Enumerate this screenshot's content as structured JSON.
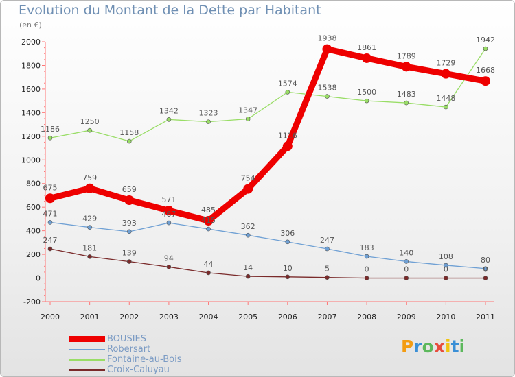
{
  "chart_data": {
    "type": "line",
    "title": "Evolution du Montant de la Dette par Habitant",
    "subtitle": "(en €)",
    "xlabel": "",
    "ylabel": "",
    "ylim": [
      -200,
      2000
    ],
    "yticks": [
      -200,
      0,
      200,
      400,
      600,
      800,
      1000,
      1200,
      1400,
      1600,
      1800,
      2000
    ],
    "x": [
      "2000",
      "2001",
      "2002",
      "2003",
      "2004",
      "2005",
      "2006",
      "2007",
      "2008",
      "2009",
      "2010",
      "2011"
    ],
    "grid": false,
    "legend_position": "bottom-left",
    "series": [
      {
        "name": "Fontaine-au-Bois",
        "color": "#99dd66",
        "values": [
          1186,
          1250,
          1158,
          1342,
          1323,
          1347,
          1574,
          1538,
          1500,
          1483,
          1448,
          1942
        ]
      },
      {
        "name": "Robersart",
        "color": "#6fa0d4",
        "values": [
          471,
          429,
          393,
          467,
          415,
          362,
          306,
          247,
          183,
          140,
          108,
          80
        ]
      },
      {
        "name": "Croix-Caluyau",
        "color": "#7a2a2a",
        "values": [
          247,
          181,
          139,
          94,
          44,
          14,
          10,
          5,
          0,
          0,
          0,
          0
        ]
      },
      {
        "name": "BOUSIES",
        "color": "#ee0000",
        "values": [
          675,
          759,
          659,
          571,
          485,
          754,
          1116,
          1938,
          1861,
          1789,
          1729,
          1668
        ]
      }
    ],
    "data_labels": {
      "Fontaine-au-Bois": [
        "1186",
        "1250",
        "1158",
        "1342",
        "1323",
        "1347",
        "1574",
        "1538",
        "1500",
        "1483",
        "1448",
        "1942"
      ],
      "Robersart": [
        "471",
        "429",
        "393",
        "467",
        "415",
        "362",
        "306",
        "247",
        "183",
        "140",
        "108",
        "80"
      ],
      "Croix-Caluyau": [
        "247",
        "181",
        "139",
        "94",
        "44",
        "14",
        "10",
        "5",
        "0",
        "0",
        "0",
        "0"
      ],
      "BOUSIES": [
        "675",
        "759",
        "659",
        "571",
        "485",
        "754",
        "1116",
        "1938",
        "1861",
        "1789",
        "1729",
        "1668"
      ]
    }
  },
  "legend": [
    {
      "name": "BOUSIES",
      "color": "#ee0000"
    },
    {
      "name": "Robersart",
      "color": "#6fa0d4"
    },
    {
      "name": "Fontaine-au-Bois",
      "color": "#99dd66"
    },
    {
      "name": "Croix-Caluyau",
      "color": "#7a2a2a"
    }
  ],
  "logo": {
    "text": "Proxiti",
    "colors": [
      "#f39c12",
      "#3a8fd6",
      "#5cb85c",
      "#e74c3c",
      "#f1c40f",
      "#3a8fd6",
      "#5cb85c"
    ]
  }
}
